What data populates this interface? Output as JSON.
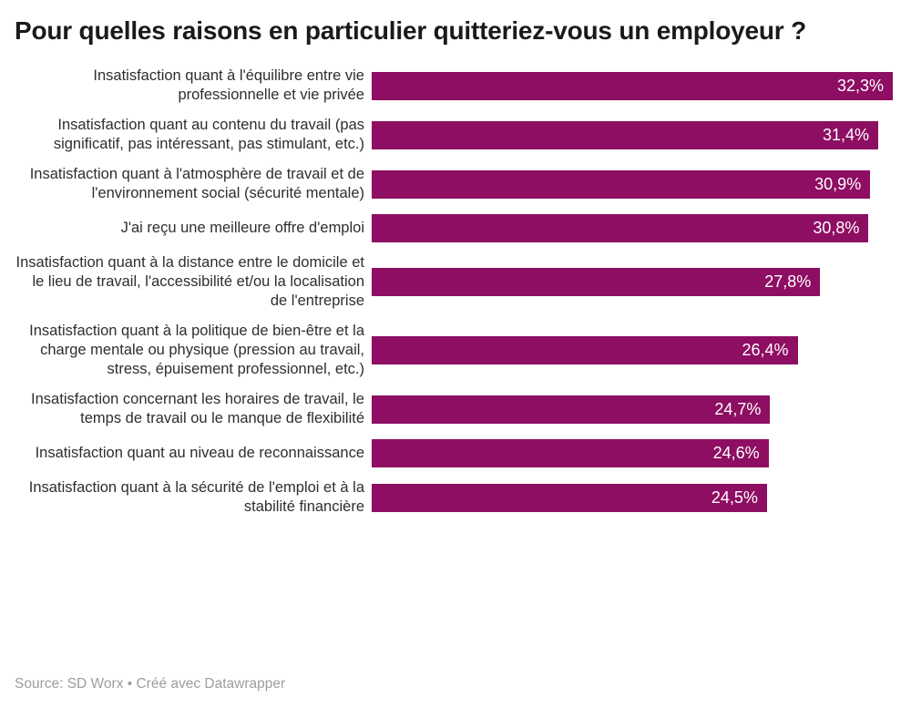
{
  "header": {
    "title": "Pour quelles raisons en particulier quitteriez-vous un employeur ?"
  },
  "footer": {
    "source": "Source: SD Worx • Créé avec Datawrapper"
  },
  "colors": {
    "background": "#ffffff",
    "bar": "#8E0E63",
    "title_text": "#1a1a1a",
    "label_text": "#2e2e2e",
    "value_text": "#ffffff",
    "footer_text": "#9e9e9e"
  },
  "chart_data": {
    "type": "bar",
    "orientation": "horizontal",
    "title": "Pour quelles raisons en particulier quitteriez-vous un employeur ?",
    "xlabel": "",
    "ylabel": "",
    "xlim": [
      0,
      32.3
    ],
    "grid": false,
    "legend": "none",
    "value_format": "percent, comma decimal",
    "source": "SD Worx",
    "created_with": "Datawrapper",
    "categories": [
      "Insatisfaction quant à l'équilibre entre vie professionnelle et vie privée",
      "Insatisfaction quant au contenu du travail (pas significatif, pas intéressant, pas stimulant, etc.)",
      "Insatisfaction quant à l'atmosphère de travail et de l'environnement social (sécurité mentale)",
      "J'ai reçu une meilleure offre d'emploi",
      "Insatisfaction quant à la distance entre le domicile et le lieu de travail, l'accessibilité et/ou la localisation de l'entreprise",
      "Insatisfaction quant à la politique de bien-être et la charge mentale ou physique (pression au travail, stress, épuisement professionnel, etc.)",
      "Insatisfaction concernant les horaires de travail, le temps de travail ou le manque de flexibilité",
      "Insatisfaction quant au niveau de reconnaissance",
      "Insatisfaction quant à la sécurité de l'emploi et à la stabilité financière"
    ],
    "values": [
      32.3,
      31.4,
      30.9,
      30.8,
      27.8,
      26.4,
      24.7,
      24.6,
      24.5
    ],
    "value_labels": [
      "32,3%",
      "31,4%",
      "30,9%",
      "30,8%",
      "27,8%",
      "26,4%",
      "24,7%",
      "24,6%",
      "24,5%"
    ]
  }
}
